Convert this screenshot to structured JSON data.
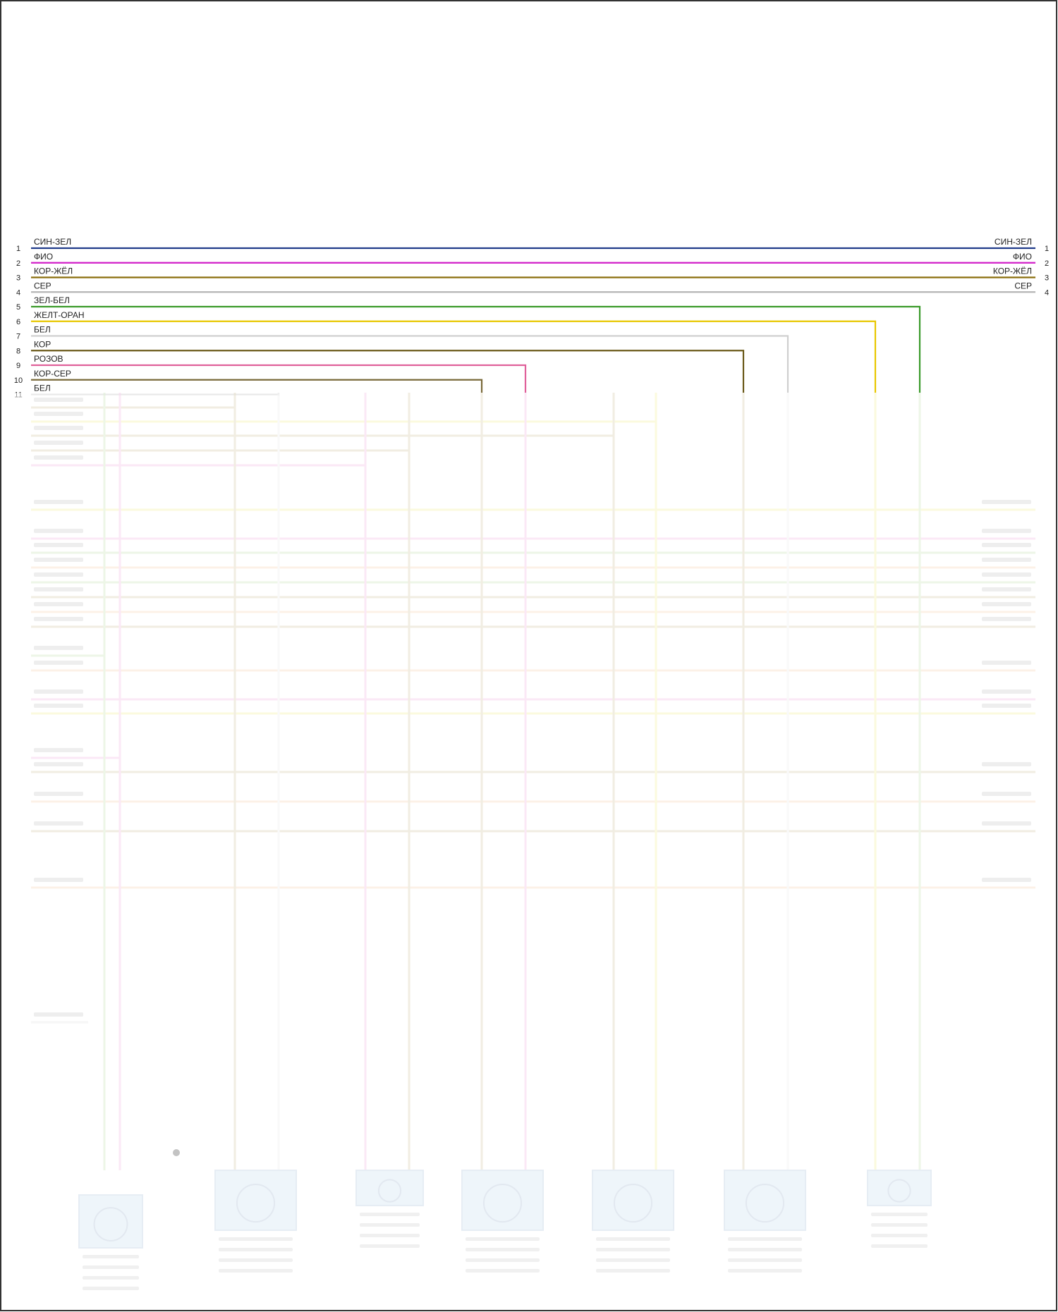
{
  "diagram": {
    "legible_wires": [
      {
        "num": "1",
        "label": "СИН-ЗЕЛ",
        "color": "#1f3a8a",
        "right_label": "СИН-ЗЕЛ",
        "right_num": "1"
      },
      {
        "num": "2",
        "label": "ФИО",
        "color": "#d11fc9",
        "right_label": "ФИО",
        "right_num": "2"
      },
      {
        "num": "3",
        "label": "КОР-ЖЁЛ",
        "color": "#8a6d0b",
        "right_label": "КОР-ЖЁЛ",
        "right_num": "3"
      },
      {
        "num": "4",
        "label": "СЕР",
        "color": "#b5b5b5",
        "right_label": "СЕР",
        "right_num": "4"
      },
      {
        "num": "5",
        "label": "ЗЕЛ-БЕЛ",
        "color": "#3a9a2a"
      },
      {
        "num": "6",
        "label": "ЖЕЛТ-ОРАН",
        "color": "#e8c700"
      },
      {
        "num": "7",
        "label": "БЕЛ",
        "color": "#cfcfcf"
      },
      {
        "num": "8",
        "label": "КОР",
        "color": "#6b5a1a"
      },
      {
        "num": "9",
        "label": "РОЗОВ",
        "color": "#e0609a"
      },
      {
        "num": "10",
        "label": "КОР-СЕР",
        "color": "#7a6a3a"
      },
      {
        "num": "11",
        "label": "БЕЛ",
        "color": "#cfcfcf"
      }
    ],
    "colors": {
      "frame": "#333333",
      "faded_tan": "#c9b98a",
      "faded_yellow": "#f1ea7a",
      "faded_pink": "#f0a6dc",
      "faded_green": "#b9dea0",
      "faded_orange": "#f3c9a2",
      "connector_fill": "#bcd6ec",
      "connector_stroke": "#9ab7d3"
    }
  }
}
